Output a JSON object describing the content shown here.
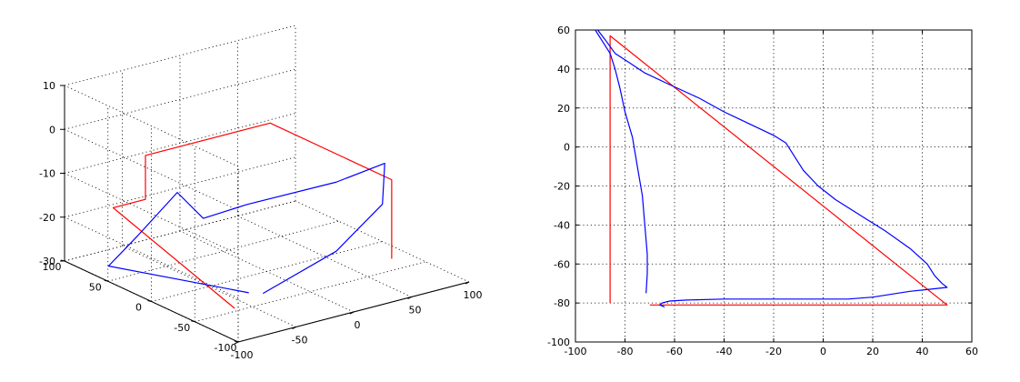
{
  "chart_data": [
    {
      "type": "line3d",
      "axes": {
        "x": {
          "range": [
            -100,
            100
          ],
          "ticks": [
            "-100",
            "-50",
            "0",
            "50",
            "100"
          ]
        },
        "y": {
          "range": [
            -100,
            100
          ],
          "ticks": [
            "-100",
            "-50",
            "0",
            "50",
            "100"
          ]
        },
        "z": {
          "range": [
            -30,
            10
          ],
          "ticks": [
            "-30",
            "-20",
            "-10",
            "0",
            "10"
          ]
        }
      },
      "grid": true,
      "series": [
        {
          "color": "#ff0000",
          "points": [
            [
              -88,
              -80,
              -25
            ],
            [
              -88,
              60,
              -15
            ],
            [
              -60,
              60,
              -15
            ],
            [
              -60,
              60,
              -5
            ],
            [
              48,
              60,
              -5
            ],
            [
              48,
              -80,
              -5
            ],
            [
              48,
              -80,
              -23
            ]
          ]
        },
        {
          "color": "#0000ff",
          "points": [
            [
              -72,
              -75,
              -23
            ],
            [
              -92,
              60,
              -28
            ],
            [
              -70,
              55,
              -22
            ],
            [
              -55,
              30,
              -11
            ],
            [
              -40,
              20,
              -17
            ],
            [
              -10,
              10,
              -15
            ],
            [
              30,
              -40,
              -8
            ],
            [
              48,
              -72,
              -2
            ],
            [
              40,
              -80,
              -10
            ],
            [
              0,
              -80,
              -18
            ],
            [
              -65,
              -82,
              -23
            ]
          ]
        }
      ]
    },
    {
      "type": "line",
      "xlim": [
        -100,
        60
      ],
      "ylim": [
        -100,
        60
      ],
      "xticks": [
        -100,
        -80,
        -60,
        -40,
        -20,
        0,
        20,
        40,
        60
      ],
      "yticks": [
        -100,
        -80,
        -60,
        -40,
        -20,
        0,
        20,
        40,
        60
      ],
      "grid": true,
      "series": [
        {
          "color": "#ff0000",
          "x": [
            -86,
            -86,
            50,
            -70
          ],
          "y": [
            -80,
            57,
            -81,
            -81
          ]
        },
        {
          "color": "#0000ff",
          "x": [
            -92,
            -89,
            -86,
            -84,
            -82,
            -80,
            -77,
            -75,
            -73,
            -72,
            -71,
            -71,
            -71.5
          ],
          "y": [
            60,
            54,
            48,
            40,
            30,
            18,
            5,
            -10,
            -25,
            -40,
            -55,
            -65,
            -75
          ]
        },
        {
          "color": "#0000ff",
          "x": [
            -91,
            -88,
            -84,
            -78,
            -72,
            -62,
            -50,
            -40,
            -30,
            -20,
            -15,
            -12,
            -8,
            -2,
            5,
            15,
            25,
            35,
            42,
            45,
            48,
            50,
            35,
            20,
            10,
            0,
            -20,
            -40,
            -55,
            -62,
            -65,
            -66,
            -64
          ],
          "y": [
            60,
            55,
            48,
            43,
            38,
            32,
            25,
            18,
            12,
            6,
            2,
            -4,
            -12,
            -20,
            -27,
            -35,
            -43,
            -52,
            -60,
            -66,
            -70,
            -72,
            -74,
            -77,
            -78,
            -78,
            -78,
            -78,
            -78.5,
            -79,
            -80,
            -81,
            -82
          ]
        }
      ]
    }
  ]
}
